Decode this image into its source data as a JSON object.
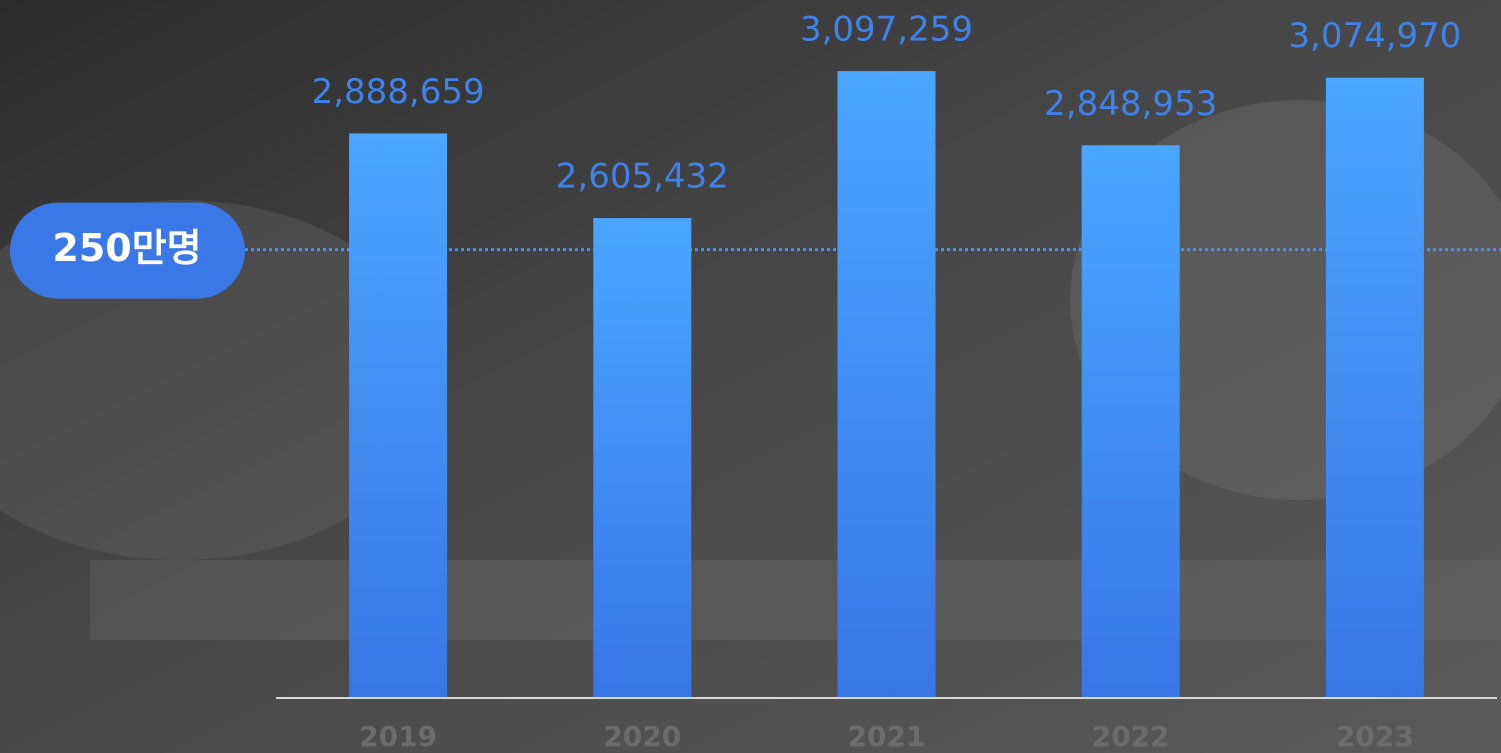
{
  "chart_data": {
    "type": "bar",
    "categories": [
      "2019",
      "2020",
      "2021",
      "2022",
      "2023"
    ],
    "values": [
      2888659,
      2605432,
      3097259,
      2848953,
      3074970
    ],
    "value_labels": [
      "2,888,659",
      "2,605,432",
      "3,097,259",
      "2,848,953",
      "3,074,970"
    ],
    "color": "#3f8cf2",
    "ylim": [
      1000000,
      3335000
    ],
    "reference_line": {
      "value": 2500000,
      "label": "250만명"
    }
  }
}
